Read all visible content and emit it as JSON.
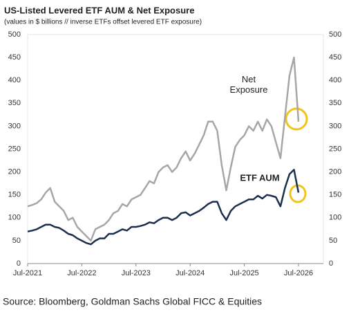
{
  "chart_data": {
    "type": "line",
    "title": "US-Listed Levered ETF AUM & Net Exposure",
    "subtitle": "(values in $ billions // inverse ETFs offset levered ETF exposure)",
    "source": "Source: Bloomberg, Goldman Sachs Global FICC & Equities",
    "x": [
      "Jul-2021",
      "Aug-2021",
      "Sep-2021",
      "Oct-2021",
      "Nov-2021",
      "Dec-2021",
      "Jan-2022",
      "Feb-2022",
      "Mar-2022",
      "Apr-2022",
      "May-2022",
      "Jun-2022",
      "Jul-2022",
      "Aug-2022",
      "Sep-2022",
      "Oct-2022",
      "Nov-2022",
      "Dec-2022",
      "Jan-2023",
      "Feb-2023",
      "Mar-2023",
      "Apr-2023",
      "May-2023",
      "Jun-2023",
      "Jul-2023",
      "Aug-2023",
      "Sep-2023",
      "Oct-2023",
      "Nov-2023",
      "Dec-2023",
      "Jan-2024",
      "Feb-2024",
      "Mar-2024",
      "Apr-2024",
      "May-2024",
      "Jun-2024",
      "Jul-2024",
      "Aug-2024",
      "Sep-2024",
      "Oct-2024",
      "Nov-2024",
      "Dec-2024",
      "Jan-2025",
      "Feb-2025",
      "Mar-2025",
      "Apr-2025",
      "May-2025",
      "Jun-2025",
      "Jul-2025",
      "Aug-2025",
      "Sep-2025",
      "Oct-2025",
      "Nov-2025",
      "Dec-2025",
      "Jan-2026",
      "Feb-2026",
      "Mar-2026",
      "Apr-2026",
      "May-2026",
      "Jun-2026",
      "Jul-2026"
    ],
    "xticks": [
      "Jul-2021",
      "Jul-2022",
      "Jul-2023",
      "Jul-2024",
      "Jul-2025",
      "Jul-2026"
    ],
    "ylim": [
      0,
      500
    ],
    "yticks": [
      0,
      50,
      100,
      150,
      200,
      250,
      300,
      350,
      400,
      450,
      500
    ],
    "y2lim": [
      0,
      500
    ],
    "y2ticks": [
      0,
      50,
      100,
      150,
      200,
      250,
      300,
      350,
      400,
      450,
      500
    ],
    "series": [
      {
        "name": "Net Exposure",
        "color": "#a6a6a6",
        "values": [
          125,
          128,
          132,
          140,
          155,
          165,
          135,
          125,
          115,
          95,
          100,
          80,
          70,
          60,
          50,
          75,
          80,
          85,
          95,
          110,
          115,
          130,
          125,
          140,
          145,
          150,
          165,
          180,
          175,
          200,
          210,
          215,
          200,
          210,
          230,
          245,
          225,
          240,
          260,
          280,
          310,
          310,
          290,
          215,
          160,
          210,
          255,
          270,
          280,
          300,
          290,
          310,
          290,
          315,
          300,
          265,
          230,
          320,
          410,
          450,
          310
        ]
      },
      {
        "name": "ETF AUM",
        "color": "#1c2f4f",
        "values": [
          70,
          72,
          75,
          80,
          85,
          85,
          80,
          78,
          72,
          65,
          62,
          55,
          50,
          45,
          42,
          50,
          55,
          55,
          65,
          65,
          70,
          75,
          72,
          80,
          80,
          82,
          85,
          90,
          88,
          95,
          100,
          100,
          95,
          100,
          110,
          112,
          105,
          110,
          115,
          122,
          130,
          135,
          135,
          110,
          95,
          115,
          125,
          130,
          135,
          140,
          140,
          148,
          142,
          150,
          148,
          145,
          125,
          165,
          195,
          205,
          155
        ]
      }
    ]
  }
}
